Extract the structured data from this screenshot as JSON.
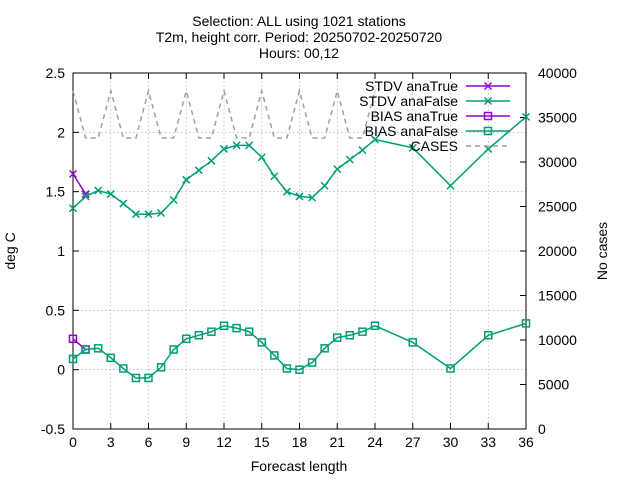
{
  "chart_data": {
    "type": "line",
    "title_lines": [
      "Selection: ALL using  1021 stations",
      "T2m, height corr.   Period: 20250702-20250720",
      "Hours: 00,12"
    ],
    "xlabel": "Forecast length",
    "ylabel": "deg C",
    "y2label": "No cases",
    "xlim": [
      0,
      36
    ],
    "ylim": [
      -0.5,
      2.5
    ],
    "y2lim": [
      0,
      40000
    ],
    "x_ticks": [
      0,
      3,
      6,
      9,
      12,
      15,
      18,
      21,
      24,
      27,
      30,
      33,
      36
    ],
    "y_ticks": [
      -0.5,
      0,
      0.5,
      1,
      1.5,
      2,
      2.5
    ],
    "y_tick_labels": [
      "-0.5",
      "0",
      "0.5",
      "1",
      "1.5",
      "2",
      "2.5"
    ],
    "y2_ticks": [
      0,
      5000,
      10000,
      15000,
      20000,
      25000,
      30000,
      35000,
      40000
    ],
    "grid": true,
    "legend_position": "top-right",
    "colors": {
      "purple": "#9400d3",
      "green": "#009e73",
      "gray": "#a0a0a0"
    },
    "series": [
      {
        "name": "STDV anaTrue",
        "axis": "y",
        "marker": "x",
        "color": "#9400d3",
        "dash": "solid",
        "x": [
          0,
          1
        ],
        "y": [
          1.65,
          1.48
        ]
      },
      {
        "name": "STDV anaFalse",
        "axis": "y",
        "marker": "x",
        "color": "#009e73",
        "dash": "solid",
        "x": [
          0,
          1,
          2,
          3,
          4,
          5,
          6,
          7,
          8,
          9,
          10,
          11,
          12,
          13,
          14,
          15,
          16,
          17,
          18,
          19,
          20,
          21,
          22,
          23,
          24,
          27,
          30,
          33,
          36
        ],
        "y": [
          1.36,
          1.46,
          1.51,
          1.48,
          1.4,
          1.31,
          1.31,
          1.32,
          1.43,
          1.6,
          1.68,
          1.76,
          1.86,
          1.89,
          1.89,
          1.79,
          1.63,
          1.5,
          1.46,
          1.45,
          1.55,
          1.69,
          1.77,
          1.85,
          1.94,
          1.87,
          1.55,
          1.86,
          2.13
        ]
      },
      {
        "name": "BIAS anaTrue",
        "axis": "y",
        "marker": "square",
        "color": "#9400d3",
        "dash": "solid",
        "x": [
          0,
          1
        ],
        "y": [
          0.26,
          0.17
        ]
      },
      {
        "name": "BIAS anaFalse",
        "axis": "y",
        "marker": "square",
        "color": "#009e73",
        "dash": "solid",
        "x": [
          0,
          1,
          2,
          3,
          4,
          5,
          6,
          7,
          8,
          9,
          10,
          11,
          12,
          13,
          14,
          15,
          16,
          17,
          18,
          19,
          20,
          21,
          22,
          23,
          24,
          27,
          30,
          33,
          36
        ],
        "y": [
          0.09,
          0.17,
          0.18,
          0.1,
          0.01,
          -0.07,
          -0.07,
          0.02,
          0.17,
          0.26,
          0.29,
          0.32,
          0.37,
          0.35,
          0.32,
          0.23,
          0.12,
          0.01,
          0.0,
          0.06,
          0.18,
          0.27,
          0.29,
          0.32,
          0.37,
          0.23,
          0.01,
          0.29,
          0.39
        ]
      },
      {
        "name": "CASES",
        "axis": "y2",
        "marker": "none",
        "color": "#a0a0a0",
        "dash": "dashed",
        "x": [
          0,
          1,
          2,
          3,
          4,
          5,
          6,
          7,
          8,
          9,
          10,
          11,
          12,
          13,
          14,
          15,
          16,
          17,
          18,
          19,
          20,
          21,
          22,
          23,
          24
        ],
        "y": [
          38000,
          32700,
          32700,
          38000,
          32700,
          32700,
          38000,
          32700,
          32700,
          38000,
          32700,
          32700,
          38000,
          32700,
          32700,
          38000,
          32700,
          32700,
          38000,
          32700,
          32700,
          38000,
          32700,
          32700,
          38000
        ]
      }
    ]
  }
}
